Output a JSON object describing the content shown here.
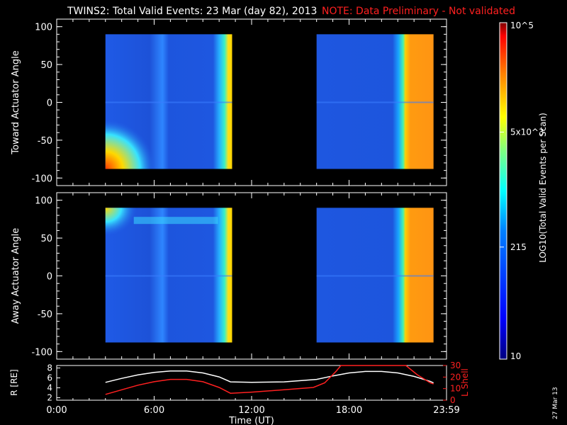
{
  "header": {
    "title": "TWINS2: Total Valid Events: 23 Mar (day  82), 2013",
    "note": "NOTE: Data Preliminary - Not validated"
  },
  "footer": {
    "date_stamp": "27 Mar 13"
  },
  "chart_data": [
    {
      "type": "heatmap",
      "panel": "top",
      "ylabel": "Toward Actuator Angle",
      "ylim": [
        -110,
        110
      ],
      "yticks": [
        "100",
        "50",
        "0",
        "-50",
        "-100"
      ],
      "xlim": [
        0,
        24
      ],
      "data_blocks": [
        {
          "x": [
            3.0,
            10.8
          ],
          "y": [
            -88,
            90
          ]
        },
        {
          "x": [
            16.0,
            23.2
          ],
          "y": [
            -88,
            90
          ]
        }
      ],
      "grid": false
    },
    {
      "type": "heatmap",
      "panel": "middle",
      "ylabel": "Away Actuator Angle",
      "ylim": [
        -110,
        110
      ],
      "yticks": [
        "100",
        "50",
        "0",
        "-50",
        "-100"
      ],
      "xlim": [
        0,
        24
      ],
      "data_blocks": [
        {
          "x": [
            3.0,
            10.8
          ],
          "y": [
            -88,
            90
          ]
        },
        {
          "x": [
            16.0,
            23.2
          ],
          "y": [
            -88,
            90
          ]
        }
      ],
      "grid": false
    },
    {
      "type": "line",
      "panel": "bottom",
      "xlabel": "Time (UT)",
      "xticks": [
        "0:00",
        "6:00",
        "12:00",
        "18:00",
        "23:59"
      ],
      "xlim": [
        0,
        24
      ],
      "ylabel_left": "R [RE]",
      "yticks_left": [
        "8",
        "6",
        "4",
        "2"
      ],
      "ylim_left": [
        1.5,
        8.5
      ],
      "ylabel_right": "L Shell",
      "yticks_right": [
        "30",
        "20",
        "10",
        "0"
      ],
      "ylim_right": [
        0,
        30
      ],
      "series": [
        {
          "axis": "left",
          "color": "#ffffff",
          "x": [
            3,
            4,
            5,
            6,
            7,
            8,
            9,
            10,
            10.7,
            12,
            14,
            16,
            17,
            18,
            19,
            20,
            21,
            22,
            23,
            23.2
          ],
          "values": [
            5.1,
            5.9,
            6.6,
            7.1,
            7.4,
            7.4,
            7.0,
            6.2,
            5.2,
            5.1,
            5.2,
            5.7,
            6.4,
            7.0,
            7.3,
            7.3,
            7.0,
            6.3,
            5.3,
            5.0
          ]
        },
        {
          "axis": "right",
          "color": "#ff2020",
          "x": [
            3,
            4,
            5,
            6,
            7,
            8,
            9,
            10,
            10.7,
            12,
            14,
            15.8,
            16.5,
            17.2,
            17.5,
            21.5,
            22.2,
            23,
            23.2
          ],
          "values": [
            5,
            9,
            13,
            16,
            18,
            18,
            16,
            11,
            6,
            7,
            9,
            11,
            15,
            25,
            30,
            30,
            22,
            15,
            14
          ]
        }
      ]
    }
  ],
  "colorbar": {
    "label": "LOG10(Total Valid Events per Scan)",
    "tick_labels": [
      "10^5",
      "5x10^3",
      "215",
      "10"
    ],
    "tick_values": [
      100000,
      5000,
      215,
      10
    ],
    "range": [
      10,
      100000
    ],
    "scale": "log",
    "colors": [
      "#00007f",
      "#0000ff",
      "#007fff",
      "#00ffff",
      "#7fff7f",
      "#ffff00",
      "#ff7f00",
      "#ff0000",
      "#7f0000"
    ]
  }
}
